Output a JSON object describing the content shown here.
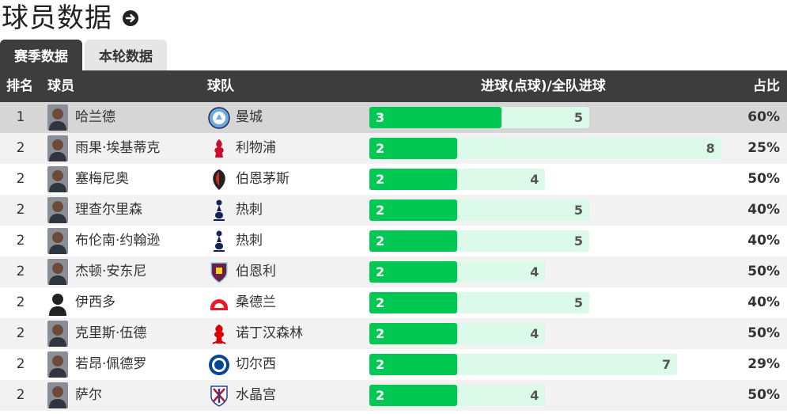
{
  "page": {
    "title": "球员数据"
  },
  "tabs": [
    {
      "label": "赛季数据",
      "active": true
    },
    {
      "label": "本轮数据",
      "active": false
    }
  ],
  "columns": {
    "rank": "排名",
    "player": "球员",
    "team": "球队",
    "goals": "进球(点球)/全队进球",
    "pct": "占比"
  },
  "colors": {
    "header_bg": "#3d3d3d",
    "goals_bar": "#00c853",
    "total_bar": "#dcfaea",
    "highlight_row": "#d6d6d6"
  },
  "rows": [
    {
      "rank": "1",
      "player": "哈兰德",
      "team": "曼城",
      "goals": "3",
      "team_goals": "5",
      "pct": "60%",
      "avatar": "player-photo",
      "crest": "man-city-crest"
    },
    {
      "rank": "2",
      "player": "雨果·埃基蒂克",
      "team": "利物浦",
      "goals": "2",
      "team_goals": "8",
      "pct": "25%",
      "avatar": "player-photo",
      "crest": "liverpool-crest"
    },
    {
      "rank": "2",
      "player": "塞梅尼奥",
      "team": "伯恩茅斯",
      "goals": "2",
      "team_goals": "4",
      "pct": "50%",
      "avatar": "player-photo",
      "crest": "bournemouth-crest"
    },
    {
      "rank": "2",
      "player": "理查尔里森",
      "team": "热刺",
      "goals": "2",
      "team_goals": "5",
      "pct": "40%",
      "avatar": "player-photo",
      "crest": "tottenham-crest"
    },
    {
      "rank": "2",
      "player": "布伦南·约翰逊",
      "team": "热刺",
      "goals": "2",
      "team_goals": "5",
      "pct": "40%",
      "avatar": "player-photo",
      "crest": "tottenham-crest"
    },
    {
      "rank": "2",
      "player": "杰顿·安东尼",
      "team": "伯恩利",
      "goals": "2",
      "team_goals": "4",
      "pct": "50%",
      "avatar": "player-photo",
      "crest": "burnley-crest"
    },
    {
      "rank": "2",
      "player": "伊西多",
      "team": "桑德兰",
      "goals": "2",
      "team_goals": "5",
      "pct": "40%",
      "avatar": "placeholder-silhouette",
      "crest": "sunderland-crest"
    },
    {
      "rank": "2",
      "player": "克里斯·伍德",
      "team": "诺丁汉森林",
      "goals": "2",
      "team_goals": "4",
      "pct": "50%",
      "avatar": "player-photo",
      "crest": "nottingham-forest-crest"
    },
    {
      "rank": "2",
      "player": "若昂·佩德罗",
      "team": "切尔西",
      "goals": "2",
      "team_goals": "7",
      "pct": "29%",
      "avatar": "player-photo",
      "crest": "chelsea-crest"
    },
    {
      "rank": "2",
      "player": "萨尔",
      "team": "水晶宫",
      "goals": "2",
      "team_goals": "4",
      "pct": "50%",
      "avatar": "player-photo",
      "crest": "crystal-palace-crest"
    }
  ]
}
